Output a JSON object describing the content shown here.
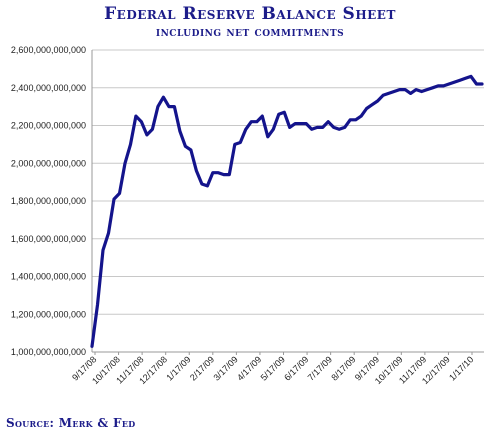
{
  "header": {
    "title": "Federal Reserve Balance Sheet",
    "subtitle": "including net commitments"
  },
  "footer": {
    "source": "Source: Merk & Fed"
  },
  "colors": {
    "series": "#14148c",
    "gridline": "#c8c8c8",
    "title": "#1c1c8a"
  },
  "chart_data": {
    "type": "line",
    "title": "Federal Reserve Balance Sheet",
    "subtitle": "including net commitments",
    "xlabel": "",
    "ylabel": "",
    "ylim": [
      1000000000000,
      2600000000000
    ],
    "grid": true,
    "y_ticks": [
      1000000000000,
      1200000000000,
      1400000000000,
      1600000000000,
      1800000000000,
      2000000000000,
      2200000000000,
      2400000000000,
      2600000000000
    ],
    "y_tick_labels": [
      "1,000,000,000,000",
      "1,200,000,000,000",
      "1,400,000,000,000",
      "1,600,000,000,000",
      "1,800,000,000,000",
      "2,000,000,000,000",
      "2,200,000,000,000",
      "2,400,000,000,000",
      "2,600,000,000,000"
    ],
    "x_tick_labels": [
      "9/17/08",
      "10/17/08",
      "11/17/08",
      "12/17/08",
      "1/17/09",
      "2/17/09",
      "3/17/09",
      "4/17/09",
      "5/17/09",
      "6/17/09",
      "7/17/09",
      "8/17/09",
      "9/17/09",
      "10/17/09",
      "11/17/09",
      "12/17/09",
      "1/17/10"
    ],
    "series": [
      {
        "values": [
          1030000000000,
          1250000000000,
          1540000000000,
          1630000000000,
          1810000000000,
          1840000000000,
          2000000000000,
          2100000000000,
          2250000000000,
          2220000000000,
          2150000000000,
          2180000000000,
          2300000000000,
          2350000000000,
          2300000000000,
          2300000000000,
          2170000000000,
          2090000000000,
          2070000000000,
          1960000000000,
          1890000000000,
          1880000000000,
          1950000000000,
          1950000000000,
          1940000000000,
          1940000000000,
          2100000000000,
          2110000000000,
          2180000000000,
          2220000000000,
          2220000000000,
          2250000000000,
          2140000000000,
          2180000000000,
          2260000000000,
          2270000000000,
          2190000000000,
          2210000000000,
          2210000000000,
          2210000000000,
          2180000000000,
          2190000000000,
          2190000000000,
          2220000000000,
          2190000000000,
          2180000000000,
          2190000000000,
          2230000000000,
          2230000000000,
          2250000000000,
          2290000000000,
          2310000000000,
          2330000000000,
          2360000000000,
          2370000000000,
          2380000000000,
          2390000000000,
          2390000000000,
          2370000000000,
          2390000000000,
          2380000000000,
          2390000000000,
          2400000000000,
          2410000000000,
          2410000000000,
          2420000000000,
          2430000000000,
          2440000000000,
          2450000000000,
          2460000000000,
          2420000000000,
          2420000000000
        ]
      }
    ]
  }
}
